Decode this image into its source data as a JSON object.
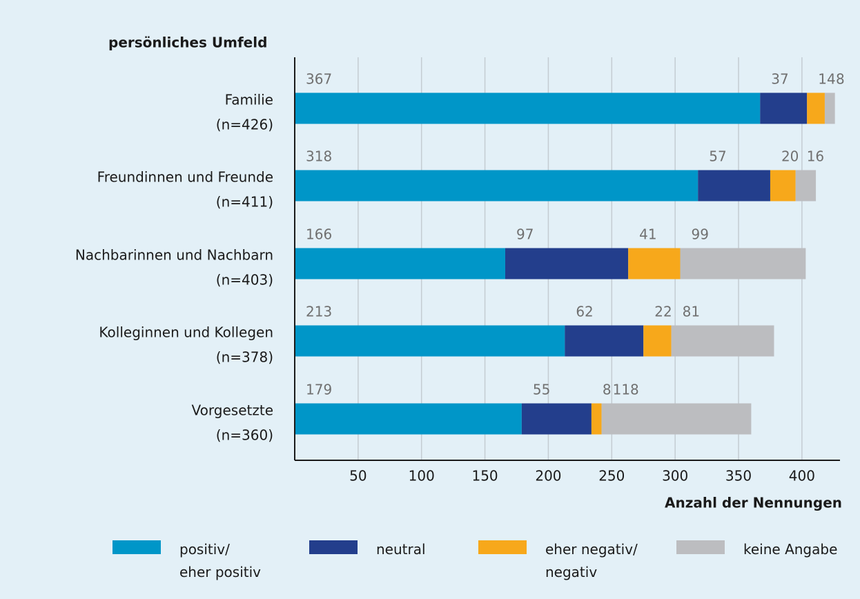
{
  "chart_data": {
    "type": "stacked_bar_horizontal",
    "title": "persönliches Umfeld",
    "x_label": "Anzahl der Nennungen",
    "categories": [
      "Familie",
      "Freundinnen und Freunde",
      "Nachbarinnen und Nachbarn",
      "Kolleginnen und Kollegen",
      "Vorgesetzte"
    ],
    "category_notes": [
      "(n=426)",
      "(n=411)",
      "(n=403)",
      "(n=378)",
      "(n=360)"
    ],
    "series": [
      {
        "name": "positiv/\neher positiv",
        "color": "#0096c8",
        "values": [
          367,
          318,
          166,
          213,
          179
        ]
      },
      {
        "name": "neutral",
        "color": "#233e8c",
        "values": [
          37,
          57,
          97,
          62,
          55
        ]
      },
      {
        "name": "eher negativ/\nnegativ",
        "color": "#f7a81b",
        "values": [
          14,
          20,
          41,
          22,
          8
        ]
      },
      {
        "name": "keine Angabe",
        "color": "#bcbdc0",
        "values": [
          8,
          16,
          99,
          81,
          118
        ]
      }
    ],
    "xlim": [
      0,
      430
    ],
    "xticks": [
      50,
      100,
      150,
      200,
      250,
      300,
      350,
      400
    ],
    "grid": true
  }
}
